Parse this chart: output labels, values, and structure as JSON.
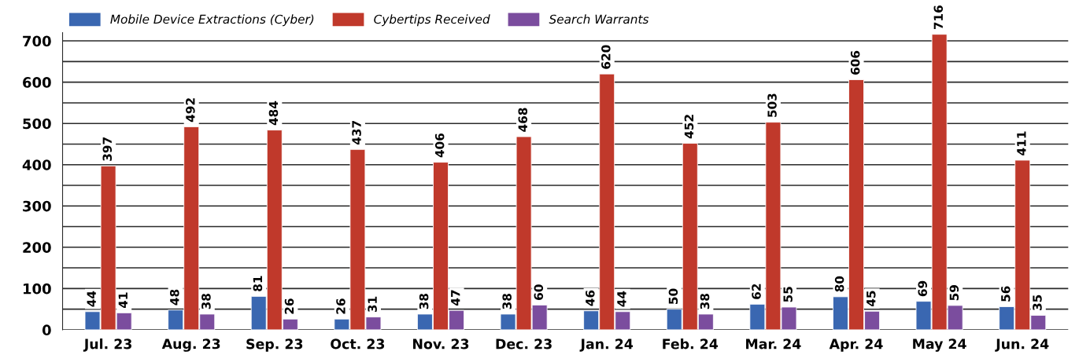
{
  "chart_data": {
    "type": "bar",
    "categories": [
      "Jul. 23",
      "Aug. 23",
      "Sep. 23",
      "Oct. 23",
      "Nov. 23",
      "Dec. 23",
      "Jan. 24",
      "Feb. 24",
      "Mar. 24",
      "Apr. 24",
      "May 24",
      "Jun. 24"
    ],
    "series": [
      {
        "name": "Mobile Device Extractions (Cyber)",
        "color": "#3a67b1",
        "values": [
          44,
          48,
          81,
          26,
          38,
          38,
          46,
          50,
          62,
          80,
          69,
          56
        ]
      },
      {
        "name": "Cybertips Received",
        "color": "#c0392b",
        "values": [
          397,
          492,
          484,
          437,
          406,
          468,
          620,
          452,
          503,
          606,
          716,
          411
        ]
      },
      {
        "name": "Search Warrants",
        "color": "#7b4d9e",
        "values": [
          41,
          38,
          26,
          31,
          47,
          60,
          44,
          38,
          55,
          45,
          59,
          35
        ]
      }
    ],
    "ylim": [
      0,
      720
    ],
    "yticks": [
      0,
      {
        "value": 50,
        "label": null
      },
      100,
      {
        "value": 150,
        "label": null
      },
      200,
      {
        "value": 250,
        "label": null
      },
      300,
      {
        "value": 350,
        "label": null
      },
      400,
      {
        "value": 450,
        "label": null
      },
      500,
      {
        "value": 550,
        "label": null
      },
      600,
      {
        "value": 650,
        "label": null
      },
      700
    ],
    "grid": "y",
    "legend": "top left",
    "data_labels": true
  }
}
